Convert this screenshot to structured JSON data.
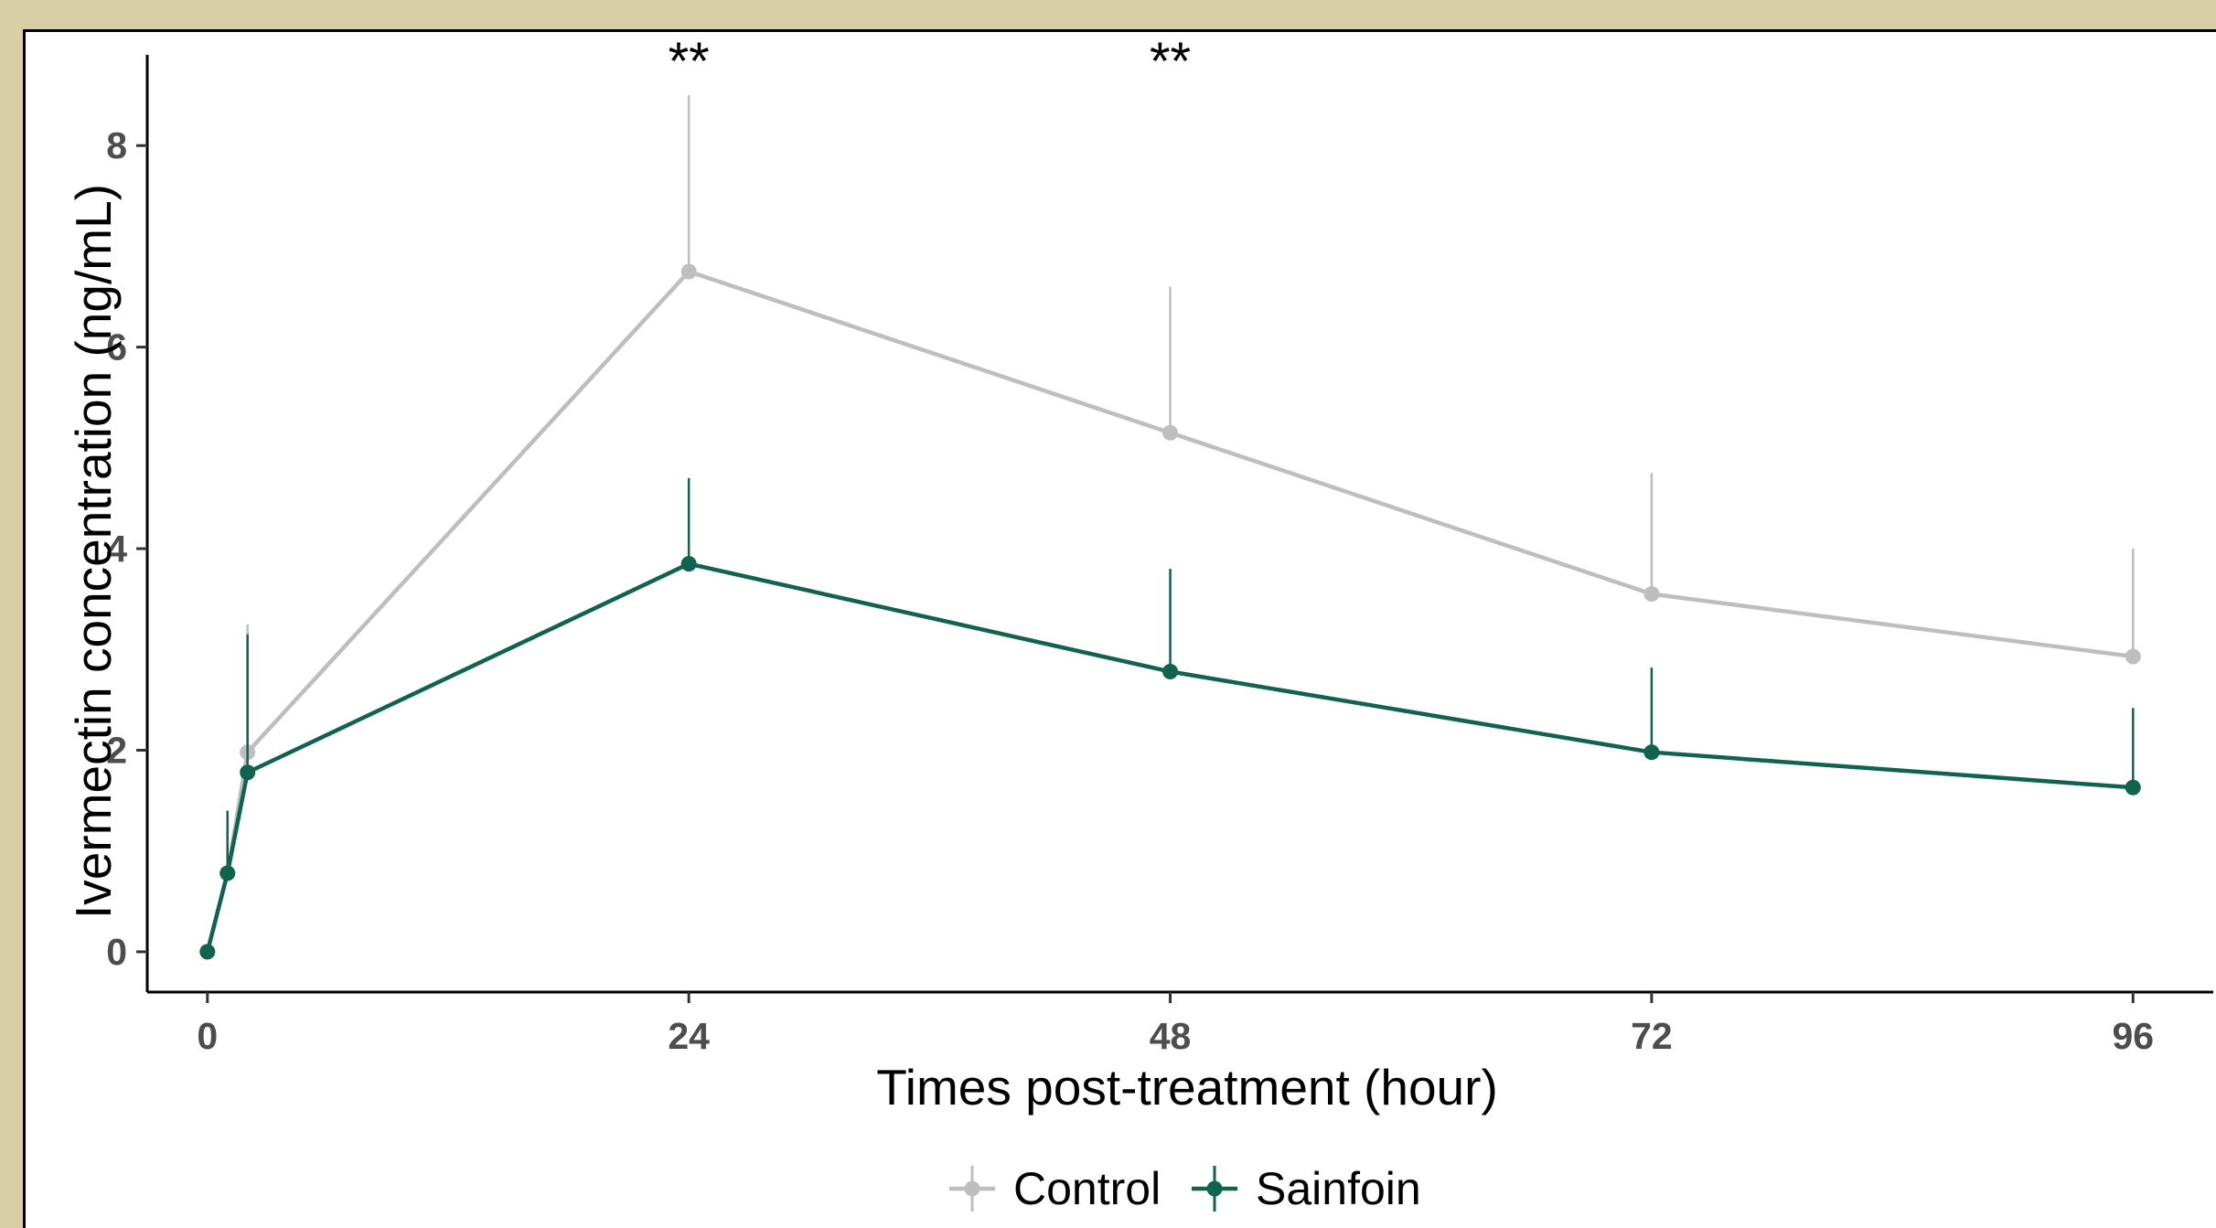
{
  "chart_data": {
    "type": "line",
    "xlabel": "Times post-treatment (hour)",
    "ylabel": "Ivermectin concentration (ng/mL)",
    "xlim": [
      -3,
      100
    ],
    "ylim": [
      -0.4,
      8.9
    ],
    "xticks": [
      0,
      24,
      48,
      72,
      96
    ],
    "yticks": [
      0,
      2,
      4,
      6,
      8
    ],
    "grid": false,
    "legend_position": "bottom",
    "series": [
      {
        "name": "Control",
        "color": "#bebebe",
        "x": [
          0,
          1,
          2,
          24,
          48,
          72,
          96
        ],
        "y": [
          0,
          0.78,
          1.98,
          6.75,
          5.15,
          3.55,
          2.93
        ],
        "error_upper": [
          0,
          1.35,
          3.25,
          8.5,
          6.6,
          4.75,
          4.0
        ]
      },
      {
        "name": "Sainfoin",
        "color": "#10634f",
        "x": [
          0,
          1,
          2,
          24,
          48,
          72,
          96
        ],
        "y": [
          0,
          0.78,
          1.78,
          3.85,
          2.78,
          1.98,
          1.63
        ],
        "error_upper": [
          0,
          1.4,
          3.15,
          4.7,
          3.8,
          2.82,
          2.42
        ]
      }
    ],
    "annotations": [
      {
        "text": "**",
        "x": 24
      },
      {
        "text": "**",
        "x": 48
      }
    ]
  }
}
